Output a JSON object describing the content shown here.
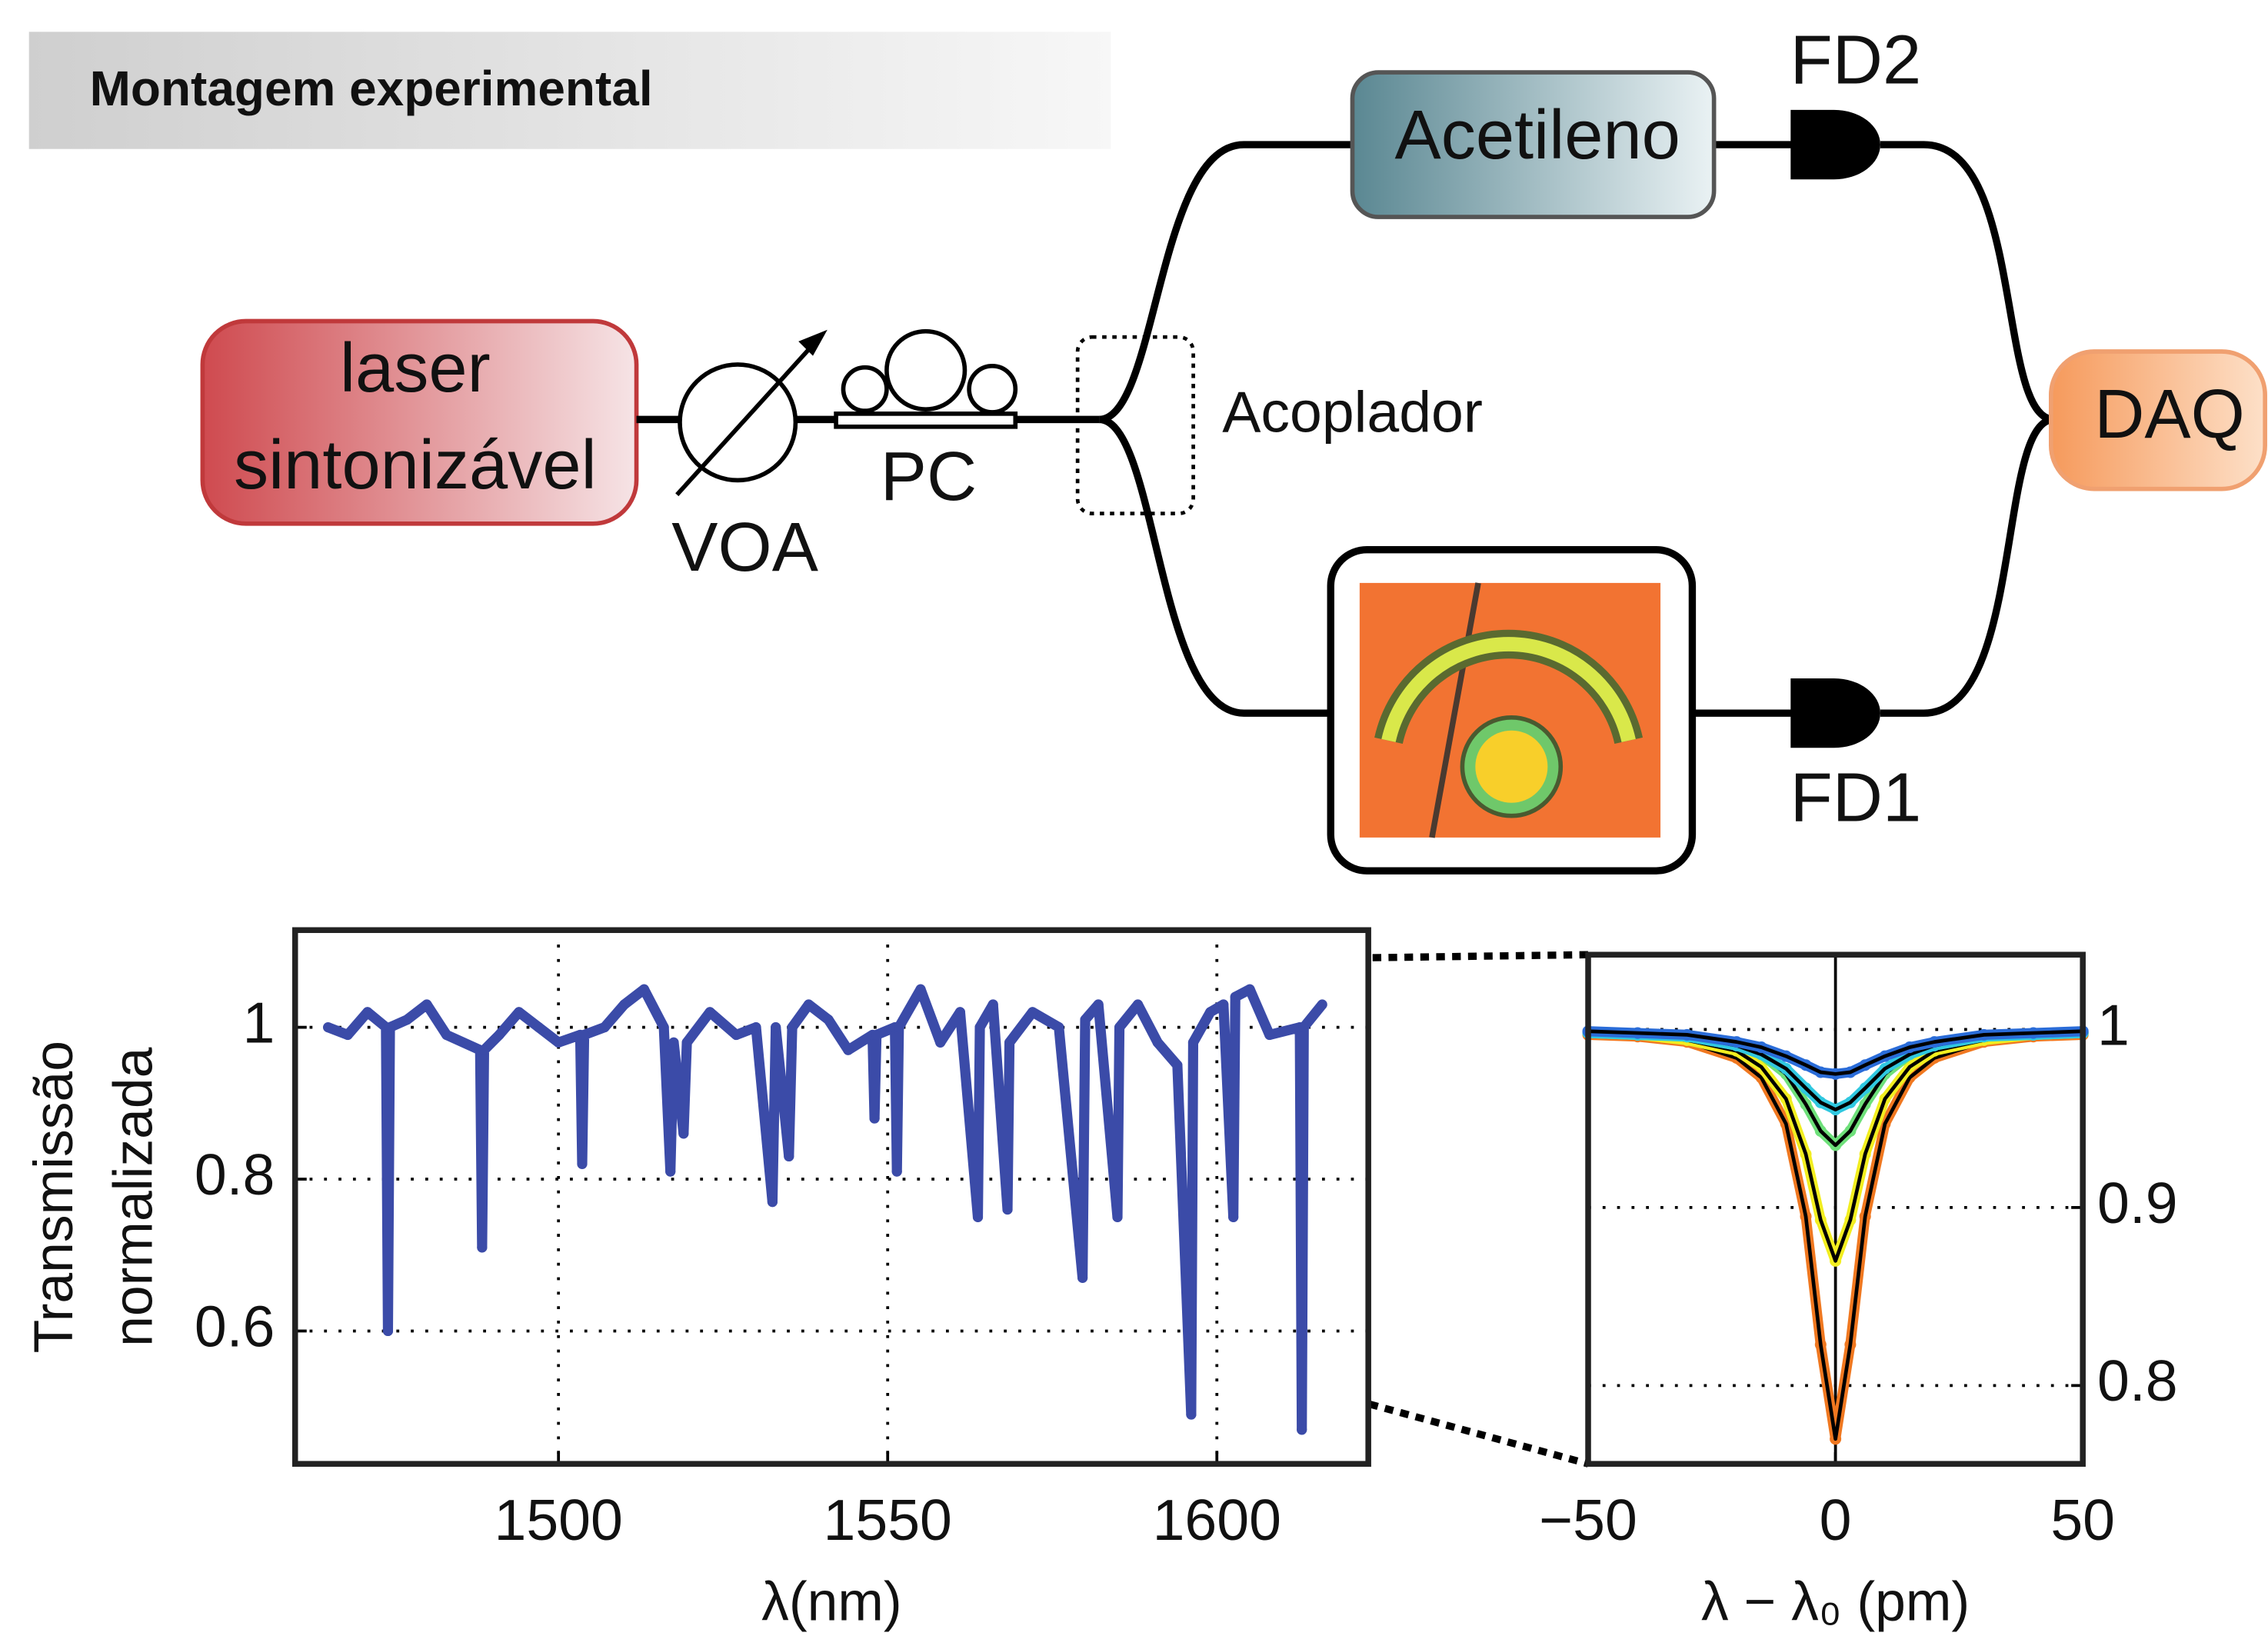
{
  "diagram": {
    "title": "Montagem experimental",
    "laser": [
      "laser",
      "sintonizável"
    ],
    "voa": "VOA",
    "pc": "PC",
    "coupler": "Acoplador",
    "acetylene": "Acetileno",
    "fd2": "FD2",
    "fd1": "FD1",
    "daq": "DAQ"
  },
  "chart_data": [
    {
      "type": "line",
      "xlabel": "λ(nm)",
      "ylabel": [
        "Transmissão",
        "normalizada"
      ],
      "color": "#3b4ba8",
      "grid": true,
      "xlim": [
        1460,
        1623
      ],
      "ylim": [
        0.425,
        1.128
      ],
      "xticks": [
        1500,
        1550,
        1600
      ],
      "yticks": [
        0.6,
        0.8,
        1
      ],
      "x": [
        1465,
        1468,
        1471,
        1473.8,
        1474.1,
        1474.4,
        1477,
        1480,
        1483,
        1488.1,
        1488.4,
        1488.7,
        1491,
        1494,
        1497,
        1500,
        1503.3,
        1503.6,
        1503.9,
        1507,
        1510,
        1513,
        1516,
        1517,
        1517.5,
        1519,
        1519.5,
        1523,
        1527,
        1530,
        1532.5,
        1533,
        1535,
        1535.5,
        1538,
        1541,
        1544,
        1547.7,
        1548,
        1548.3,
        1551.1,
        1551.4,
        1551.7,
        1555,
        1558,
        1561,
        1563.7,
        1564,
        1566,
        1568.2,
        1568.5,
        1572,
        1576,
        1579.6,
        1580,
        1582,
        1584.9,
        1585.2,
        1588,
        1591,
        1594,
        1596.1,
        1596.4,
        1599,
        1601,
        1602.5,
        1602.8,
        1605,
        1608,
        1612.6,
        1612.9,
        1613.2,
        1616
      ],
      "values": [
        1.0,
        0.99,
        1.02,
        1.0,
        0.6,
        1.0,
        1.01,
        1.03,
        0.99,
        0.97,
        0.71,
        0.97,
        0.99,
        1.02,
        1.0,
        0.98,
        0.99,
        0.82,
        0.99,
        1.0,
        1.03,
        1.05,
        1.0,
        0.81,
        0.98,
        0.86,
        0.98,
        1.02,
        0.99,
        1.0,
        0.77,
        1.0,
        0.83,
        1.0,
        1.03,
        1.01,
        0.97,
        0.99,
        0.88,
        0.99,
        1.0,
        0.81,
        1.0,
        1.05,
        0.98,
        1.02,
        0.75,
        1.0,
        1.03,
        0.76,
        0.98,
        1.02,
        1.0,
        0.67,
        1.01,
        1.03,
        0.75,
        1.0,
        1.03,
        0.98,
        0.95,
        0.49,
        0.98,
        1.02,
        1.03,
        0.75,
        1.04,
        1.05,
        0.99,
        1.0,
        0.47,
        1.0,
        1.03
      ]
    },
    {
      "type": "line",
      "xlabel": "λ − λ₀ (pm)",
      "fit_color": "#000000",
      "grid": true,
      "xlim": [
        -50,
        50
      ],
      "ylim": [
        0.756,
        1.042
      ],
      "xticks": [
        {
          "value": -50,
          "label": "−50"
        },
        0,
        50
      ],
      "yticks": [
        0.8,
        0.9,
        1
      ],
      "x": [
        -50,
        -40,
        -30,
        -20,
        -15,
        -10,
        -6,
        -3,
        0,
        3,
        6,
        10,
        15,
        20,
        30,
        40,
        50
      ],
      "series": [
        {
          "color": "#f07820",
          "values": [
            0.997,
            0.996,
            0.993,
            0.984,
            0.973,
            0.947,
            0.895,
            0.823,
            0.77,
            0.823,
            0.895,
            0.947,
            0.973,
            0.984,
            0.993,
            0.996,
            0.997
          ]
        },
        {
          "color": "#f2ee20",
          "values": [
            0.998,
            0.997,
            0.994,
            0.988,
            0.979,
            0.961,
            0.93,
            0.893,
            0.87,
            0.893,
            0.93,
            0.961,
            0.979,
            0.988,
            0.994,
            0.997,
            0.998
          ]
        },
        {
          "color": "#6ee07a",
          "values": [
            0.998,
            0.997,
            0.996,
            0.991,
            0.986,
            0.975,
            0.958,
            0.943,
            0.935,
            0.943,
            0.958,
            0.975,
            0.986,
            0.991,
            0.996,
            0.997,
            0.998
          ]
        },
        {
          "color": "#30c8e0",
          "values": [
            0.998,
            0.997,
            0.996,
            0.991,
            0.986,
            0.978,
            0.967,
            0.959,
            0.955,
            0.959,
            0.967,
            0.978,
            0.986,
            0.991,
            0.996,
            0.997,
            0.998
          ]
        },
        {
          "color": "#2a6cd8",
          "values": [
            0.999,
            0.998,
            0.997,
            0.993,
            0.99,
            0.985,
            0.98,
            0.976,
            0.975,
            0.976,
            0.98,
            0.985,
            0.99,
            0.993,
            0.997,
            0.998,
            0.999
          ]
        }
      ]
    }
  ]
}
